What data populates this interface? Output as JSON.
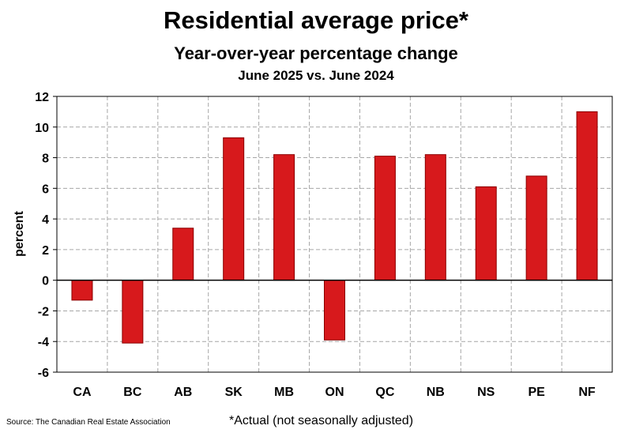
{
  "chart_data": {
    "type": "bar",
    "title": "Residential average price*",
    "subtitle": "Year-over-year percentage change",
    "subtitle2": "June 2025 vs. June 2024",
    "xlabel": "",
    "ylabel": "percent",
    "categories": [
      "CA",
      "BC",
      "AB",
      "SK",
      "MB",
      "ON",
      "QC",
      "NB",
      "NS",
      "PE",
      "NF"
    ],
    "values": [
      -1.3,
      -4.1,
      3.4,
      9.3,
      8.2,
      -3.9,
      8.1,
      8.2,
      6.1,
      6.8,
      11.0
    ],
    "ylim": [
      -6,
      12
    ],
    "yticks": [
      -6,
      -4,
      -2,
      0,
      2,
      4,
      6,
      8,
      10,
      12
    ],
    "grid": true,
    "bar_color": "#d7191c",
    "bar_edge_color": "#8b0000",
    "source": "Source: The Canadian Real Estate Association",
    "footnote": "*Actual (not seasonally adjusted)"
  }
}
